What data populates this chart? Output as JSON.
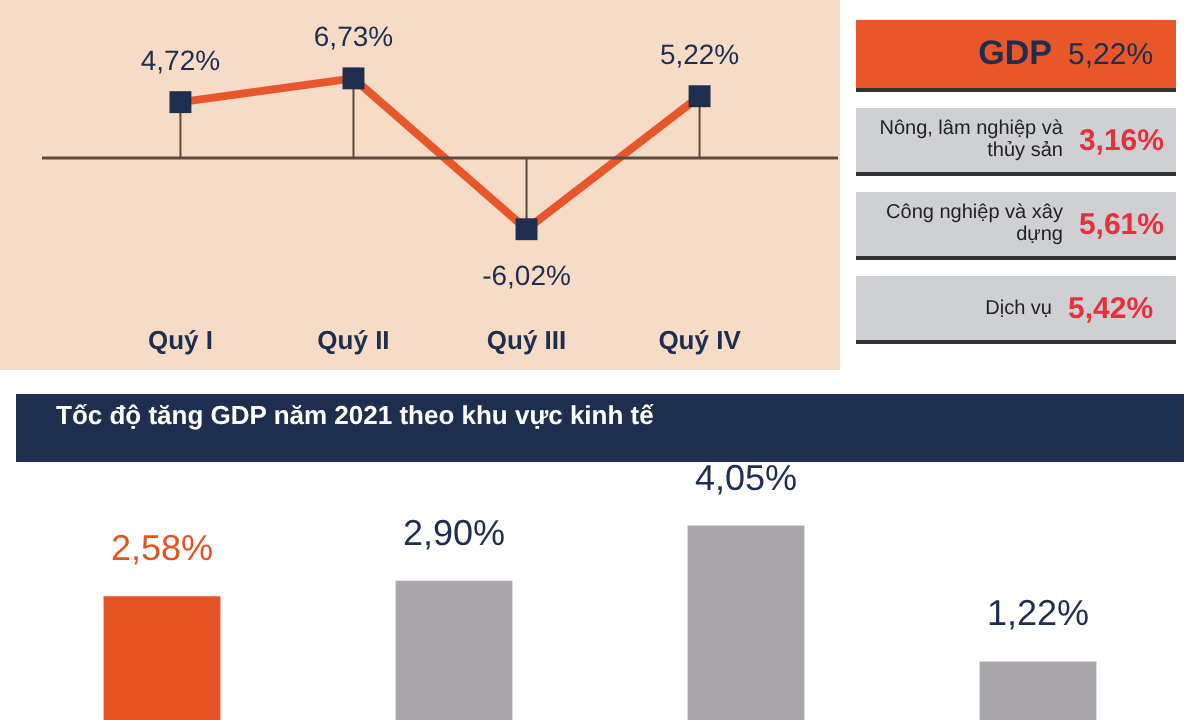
{
  "chart_data": [
    {
      "type": "line",
      "categories": [
        "Quý I",
        "Quý II",
        "Quý III",
        "Quý IV"
      ],
      "marker": "square",
      "ref_lines": [
        {
          "axis": "y",
          "value": 0
        }
      ],
      "series": [
        {
          "color": "#e8562a",
          "values": [
            4.72,
            6.73,
            -6.02,
            5.22
          ],
          "value_labels": [
            "4,72%",
            "6,73%",
            "-6,02%",
            "5,22%"
          ]
        }
      ]
    },
    {
      "type": "other",
      "annotations": [
        "GDP",
        "5,22%",
        "Nông, lâm nghiệp và thủy sản",
        "3,16%",
        "Công nghiệp và xây dựng",
        "5,61%",
        "Dịch vụ",
        "5,42%"
      ]
    },
    {
      "type": "bar",
      "title": "Tốc độ tăng GDP năm 2021 theo khu vực kinh tế",
      "categories": [
        null,
        null,
        null,
        null
      ],
      "values": [
        2.58,
        2.9,
        4.05,
        1.22
      ],
      "colors": [
        "#e55324",
        "#a9a7ab",
        "#a9a7ab",
        "#a9a7ab"
      ],
      "value_labels": [
        "2,58%",
        "2,90%",
        "4,05%",
        "1,22%"
      ]
    }
  ]
}
